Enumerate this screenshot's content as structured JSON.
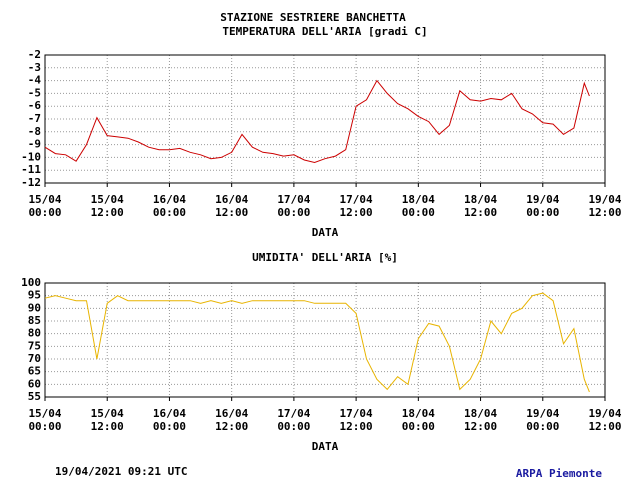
{
  "header": {
    "title": "STAZIONE SESTRIERE BANCHETTA"
  },
  "chart_data": [
    {
      "type": "line",
      "title": "TEMPERATURA DELL'ARIA [gradi C]",
      "x_label": "DATA",
      "x": [
        "15/04 00:00",
        "15/04 02:00",
        "15/04 04:00",
        "15/04 06:00",
        "15/04 08:00",
        "15/04 10:00",
        "15/04 12:00",
        "15/04 14:00",
        "15/04 16:00",
        "15/04 18:00",
        "15/04 20:00",
        "15/04 22:00",
        "16/04 00:00",
        "16/04 02:00",
        "16/04 04:00",
        "16/04 06:00",
        "16/04 08:00",
        "16/04 10:00",
        "16/04 12:00",
        "16/04 14:00",
        "16/04 16:00",
        "16/04 18:00",
        "16/04 20:00",
        "16/04 22:00",
        "17/04 00:00",
        "17/04 02:00",
        "17/04 04:00",
        "17/04 06:00",
        "17/04 08:00",
        "17/04 10:00",
        "17/04 12:00",
        "17/04 14:00",
        "17/04 16:00",
        "17/04 18:00",
        "17/04 20:00",
        "17/04 22:00",
        "18/04 00:00",
        "18/04 02:00",
        "18/04 04:00",
        "18/04 06:00",
        "18/04 08:00",
        "18/04 10:00",
        "18/04 12:00",
        "18/04 14:00",
        "18/04 16:00",
        "18/04 18:00",
        "18/04 20:00",
        "18/04 22:00",
        "19/04 00:00",
        "19/04 02:00",
        "19/04 04:00",
        "19/04 06:00",
        "19/04 08:00",
        "19/04 09:00"
      ],
      "series": [
        {
          "name": "TEMPERATURA DELL'ARIA",
          "color": "#cc0000",
          "values": [
            -9.2,
            -9.7,
            -9.8,
            -10.3,
            -9.0,
            -6.9,
            -8.3,
            -8.4,
            -8.5,
            -8.8,
            -9.2,
            -9.4,
            -9.4,
            -9.3,
            -9.6,
            -9.8,
            -10.1,
            -10.0,
            -9.6,
            -8.2,
            -9.2,
            -9.6,
            -9.7,
            -9.9,
            -9.8,
            -10.2,
            -10.4,
            -10.1,
            -9.9,
            -9.4,
            -6.0,
            -5.5,
            -4.0,
            -5.0,
            -5.8,
            -6.2,
            -6.8,
            -7.2,
            -8.2,
            -7.5,
            -4.8,
            -5.5,
            -5.6,
            -5.4,
            -5.5,
            -5.0,
            -6.2,
            -6.6,
            -7.3,
            -7.4,
            -8.2,
            -7.7,
            -4.2,
            -5.2
          ]
        }
      ],
      "xlim": [
        "15/04 00:00",
        "19/04 12:00"
      ],
      "xticks": [
        "15/04 00:00",
        "15/04 12:00",
        "16/04 00:00",
        "16/04 12:00",
        "17/04 00:00",
        "17/04 12:00",
        "18/04 00:00",
        "18/04 12:00",
        "19/04 00:00",
        "19/04 12:00"
      ],
      "ylim": [
        -12,
        -2
      ],
      "yticks": [
        -12,
        -11,
        -10,
        -9,
        -8,
        -7,
        -6,
        -5,
        -4,
        -3,
        -2
      ],
      "grid": true
    },
    {
      "type": "line",
      "title": "UMIDITA' DELL'ARIA [%]",
      "x_label": "DATA",
      "x": [
        "15/04 00:00",
        "15/04 02:00",
        "15/04 04:00",
        "15/04 06:00",
        "15/04 08:00",
        "15/04 10:00",
        "15/04 12:00",
        "15/04 14:00",
        "15/04 16:00",
        "15/04 18:00",
        "15/04 20:00",
        "15/04 22:00",
        "16/04 00:00",
        "16/04 02:00",
        "16/04 04:00",
        "16/04 06:00",
        "16/04 08:00",
        "16/04 10:00",
        "16/04 12:00",
        "16/04 14:00",
        "16/04 16:00",
        "16/04 18:00",
        "16/04 20:00",
        "16/04 22:00",
        "17/04 00:00",
        "17/04 02:00",
        "17/04 04:00",
        "17/04 06:00",
        "17/04 08:00",
        "17/04 10:00",
        "17/04 12:00",
        "17/04 14:00",
        "17/04 16:00",
        "17/04 18:00",
        "17/04 20:00",
        "17/04 22:00",
        "18/04 00:00",
        "18/04 02:00",
        "18/04 04:00",
        "18/04 06:00",
        "18/04 08:00",
        "18/04 10:00",
        "18/04 12:00",
        "18/04 14:00",
        "18/04 16:00",
        "18/04 18:00",
        "18/04 20:00",
        "18/04 22:00",
        "19/04 00:00",
        "19/04 02:00",
        "19/04 04:00",
        "19/04 06:00",
        "19/04 08:00",
        "19/04 09:00"
      ],
      "series": [
        {
          "name": "UMIDITA' DELL'ARIA",
          "color": "#e8b400",
          "values": [
            94,
            95,
            94,
            93,
            93,
            70,
            92,
            95,
            93,
            93,
            93,
            93,
            93,
            93,
            93,
            92,
            93,
            92,
            93,
            92,
            93,
            93,
            93,
            93,
            93,
            93,
            92,
            92,
            92,
            92,
            88,
            70,
            62,
            58,
            63,
            60,
            78,
            84,
            83,
            75,
            58,
            62,
            70,
            85,
            80,
            88,
            90,
            95,
            96,
            93,
            76,
            82,
            62,
            57
          ]
        }
      ],
      "xlim": [
        "15/04 00:00",
        "19/04 12:00"
      ],
      "xticks": [
        "15/04 00:00",
        "15/04 12:00",
        "16/04 00:00",
        "16/04 12:00",
        "17/04 00:00",
        "17/04 12:00",
        "18/04 00:00",
        "18/04 12:00",
        "19/04 00:00",
        "19/04 12:00"
      ],
      "ylim": [
        55,
        100
      ],
      "yticks": [
        55,
        60,
        65,
        70,
        75,
        80,
        85,
        90,
        95,
        100
      ],
      "grid": true
    }
  ],
  "footer": {
    "timestamp": "19/04/2021 09:21 UTC",
    "source": "ARPA Piemonte"
  }
}
